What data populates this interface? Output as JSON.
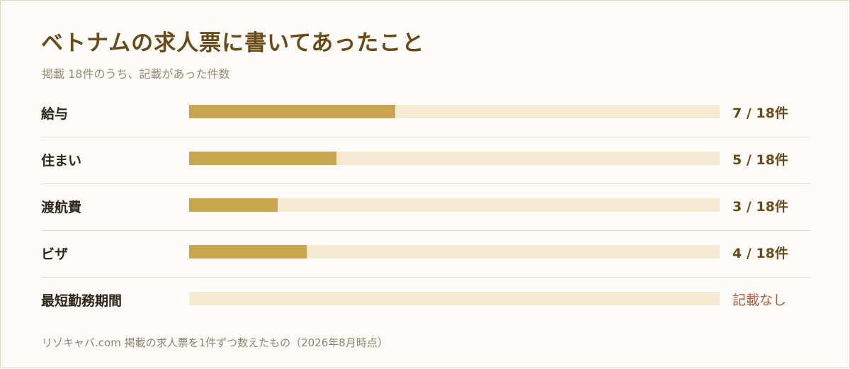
{
  "chart_data": {
    "type": "bar",
    "orientation": "horizontal",
    "title": "ベトナムの求人票に書いてあったこと",
    "subtitle": "掲載 18件のうち、記載があった件数",
    "total": 18,
    "categories": [
      "給与",
      "住まい",
      "渡航費",
      "ビザ",
      "最短勤務期間"
    ],
    "values": [
      7,
      5,
      3,
      4,
      0
    ],
    "value_labels": [
      "7 / 18件",
      "5 / 18件",
      "3 / 18件",
      "4 / 18件",
      "記載なし"
    ],
    "xlim": [
      0,
      18
    ],
    "colors": {
      "fill": "#c9a64e",
      "track": "#f5ead2",
      "title": "#6b4a16",
      "none_label": "#b05a3a"
    },
    "footnote": "リゾキャバ.com 掲載の求人票を1件ずつ数えたもの（2026年8月時点）"
  }
}
